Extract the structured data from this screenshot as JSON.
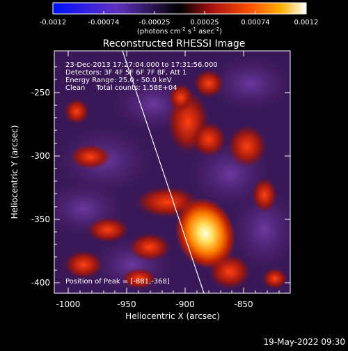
{
  "colorbar": {
    "ticks": [
      "-0.0012",
      "-0.00074",
      "-0.00025",
      "0.00025",
      "0.00074",
      "0.0012"
    ],
    "unit_base": "(photons cm",
    "unit_exp1": "-2",
    "unit_mid1": " s",
    "unit_exp2": "-1",
    "unit_mid2": " asec",
    "unit_exp3": "-2",
    "unit_end": ")"
  },
  "title": "Reconstructed RHESSI Image",
  "info": {
    "line1": "23-Dec-2013 17:27:04.000 to 17:31:56.000",
    "line2": "Detectors: 3F 4F 5F 6F 7F 8F, Att 1",
    "line3": "Energy Range: 25.0 - 50.0 keV",
    "line4": "Clean     Total counts: 1.58E+04"
  },
  "peak_label": "Position of Peak = [-881,-368]",
  "xaxis": {
    "label": "Heliocentric X (arcsec)",
    "ticks": [
      "-1000",
      "-950",
      "-900",
      "-850"
    ]
  },
  "yaxis": {
    "label": "Heliocentric Y (arcsec)",
    "ticks": [
      "-250",
      "-300",
      "-350",
      "-400"
    ]
  },
  "footer_timestamp": "19-May-2022 09:30",
  "colors": {
    "cold": "#4a1f6e",
    "warm": "#c83010",
    "hot": "#ffffa0",
    "limb": "#ffffff"
  }
}
